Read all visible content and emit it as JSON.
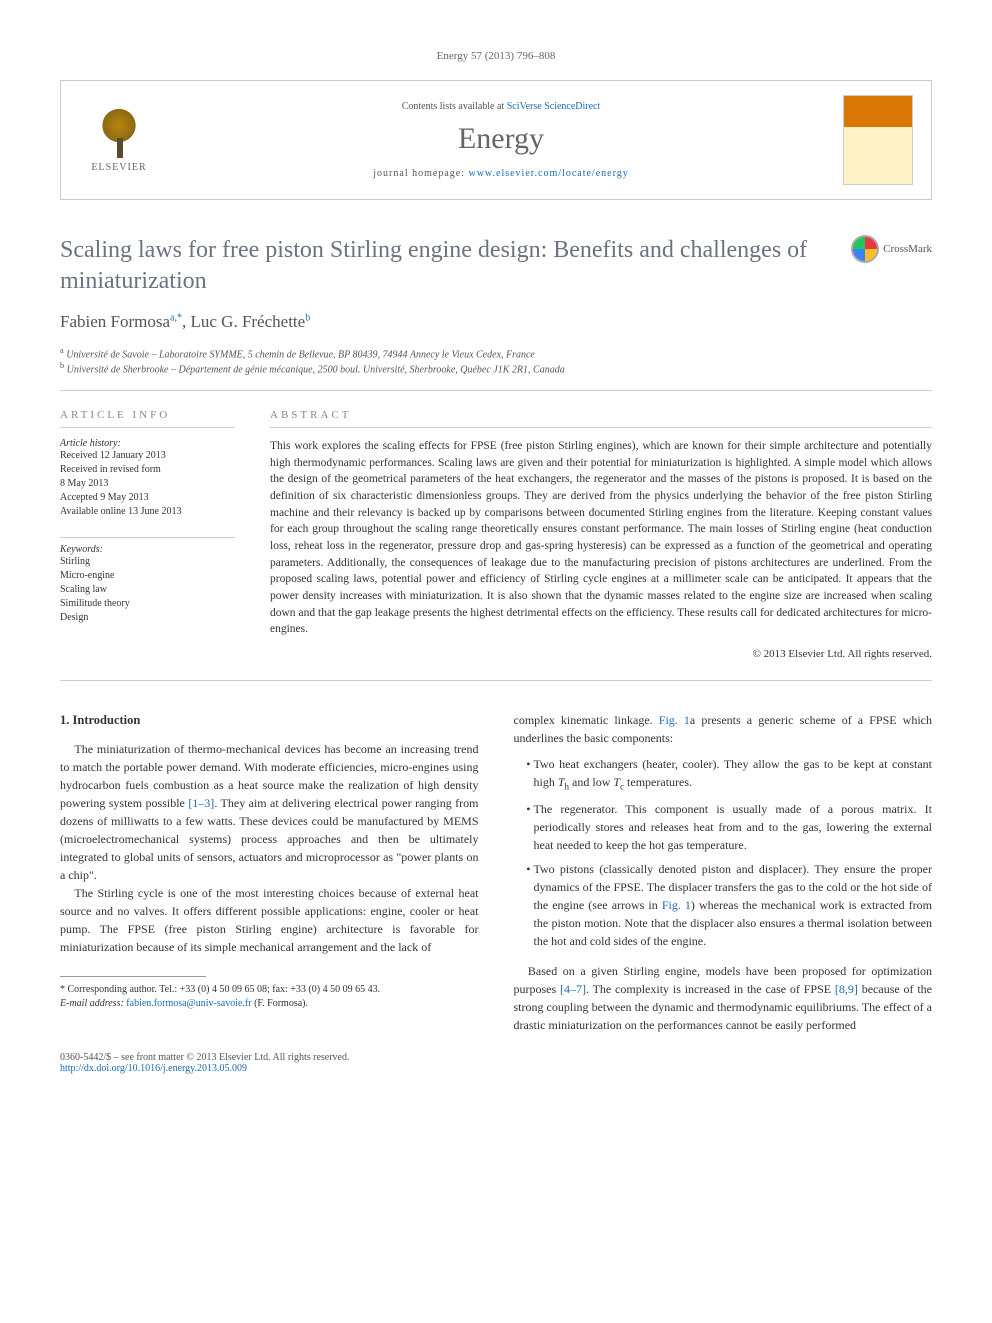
{
  "header": {
    "citation": "Energy 57 (2013) 796–808",
    "contents_prefix": "Contents lists available at ",
    "contents_link": "SciVerse ScienceDirect",
    "journal": "Energy",
    "homepage_prefix": "journal homepage: ",
    "homepage_url": "www.elsevier.com/locate/energy",
    "publisher": "ELSEVIER"
  },
  "crossmark": "CrossMark",
  "title": "Scaling laws for free piston Stirling engine design: Benefits and challenges of miniaturization",
  "authors_html": "Fabien Formosa",
  "author2": "Luc G. Fréchette",
  "sup_a": "a,",
  "sup_star": "*",
  "sup_b": "b",
  "affiliations": {
    "a": "Université de Savoie – Laboratoire SYMME, 5 chemin de Bellevue, BP 80439, 74944 Annecy le Vieux Cedex, France",
    "b": "Université de Sherbrooke – Département de génie mécanique, 2500 boul. Université, Sherbrooke, Québec J1K 2R1, Canada"
  },
  "info": {
    "heading": "ARTICLE INFO",
    "history_label": "Article history:",
    "received": "Received 12 January 2013",
    "revised1": "Received in revised form",
    "revised2": "8 May 2013",
    "accepted": "Accepted 9 May 2013",
    "online": "Available online 13 June 2013",
    "keywords_label": "Keywords:",
    "kw": [
      "Stirling",
      "Micro-engine",
      "Scaling law",
      "Similitude theory",
      "Design"
    ]
  },
  "abstract": {
    "heading": "ABSTRACT",
    "text": "This work explores the scaling effects for FPSE (free piston Stirling engines), which are known for their simple architecture and potentially high thermodynamic performances. Scaling laws are given and their potential for miniaturization is highlighted. A simple model which allows the design of the geometrical parameters of the heat exchangers, the regenerator and the masses of the pistons is proposed. It is based on the definition of six characteristic dimensionless groups. They are derived from the physics underlying the behavior of the free piston Stirling machine and their relevancy is backed up by comparisons between documented Stirling engines from the literature. Keeping constant values for each group throughout the scaling range theoretically ensures constant performance. The main losses of Stirling engine (heat conduction loss, reheat loss in the regenerator, pressure drop and gas-spring hysteresis) can be expressed as a function of the geometrical and operating parameters. Additionally, the consequences of leakage due to the manufacturing precision of pistons architectures are underlined. From the proposed scaling laws, potential power and efficiency of Stirling cycle engines at a millimeter scale can be anticipated. It appears that the power density increases with miniaturization. It is also shown that the dynamic masses related to the engine size are increased when scaling down and that the gap leakage presents the highest detrimental effects on the efficiency. These results call for dedicated architectures for micro-engines.",
    "copyright": "© 2013 Elsevier Ltd. All rights reserved."
  },
  "body": {
    "intro_heading": "1. Introduction",
    "p1a": "The miniaturization of thermo-mechanical devices has become an increasing trend to match the portable power demand. With moderate efficiencies, micro-engines using hydrocarbon fuels combustion as a heat source make the realization of high density powering system possible ",
    "p1_ref1": "[1–3]",
    "p1b": ". They aim at delivering electrical power ranging from dozens of milliwatts to a few watts. These devices could be manufactured by MEMS (microelectromechanical systems) process approaches and then be ultimately integrated to global units of sensors, actuators and microprocessor as \"power plants on a chip\".",
    "p2": "The Stirling cycle is one of the most interesting choices because of external heat source and no valves. It offers different possible applications: engine, cooler or heat pump. The FPSE (free piston Stirling engine) architecture is favorable for miniaturization because of its simple mechanical arrangement and the lack of",
    "p3a": "complex kinematic linkage. ",
    "p3_fig": "Fig. 1",
    "p3b": "a presents a generic scheme of a FPSE which underlines the basic components:",
    "bullet1a": "Two heat exchangers (heater, cooler). They allow the gas to be kept at constant high ",
    "bullet1_th": "T",
    "bullet1_h": "h",
    "bullet1b": " and low ",
    "bullet1_tc": "T",
    "bullet1_c": "c",
    "bullet1c": " temperatures.",
    "bullet2": "The regenerator. This component is usually made of a porous matrix. It periodically stores and releases heat from and to the gas, lowering the external heat needed to keep the hot gas temperature.",
    "bullet3a": "Two pistons (classically denoted piston and displacer). They ensure the proper dynamics of the FPSE. The displacer transfers the gas to the cold or the hot side of the engine (see arrows in ",
    "bullet3_fig": "Fig. 1",
    "bullet3b": ") whereas the mechanical work is extracted from the piston motion. Note that the displacer also ensures a thermal isolation between the hot and cold sides of the engine.",
    "p4a": "Based on a given Stirling engine, models have been proposed for optimization purposes ",
    "p4_ref1": "[4–7]",
    "p4b": ". The complexity is increased in the case of FPSE ",
    "p4_ref2": "[8,9]",
    "p4c": " because of the strong coupling between the dynamic and thermodynamic equilibriums. The effect of a drastic miniaturization on the performances cannot be easily performed"
  },
  "footnote": {
    "corr": "* Corresponding author. Tel.: +33 (0) 4 50 09 65 08; fax: +33 (0) 4 50 09 65 43.",
    "email_label": "E-mail address: ",
    "email": "fabien.formosa@univ-savoie.fr",
    "email_suffix": " (F. Formosa)."
  },
  "bottom": {
    "left1": "0360-5442/$ – see front matter © 2013 Elsevier Ltd. All rights reserved.",
    "doi": "http://dx.doi.org/10.1016/j.energy.2013.05.009"
  },
  "colors": {
    "link": "#1a6bb3",
    "heading_gray": "#6b7280",
    "text": "#333333"
  }
}
